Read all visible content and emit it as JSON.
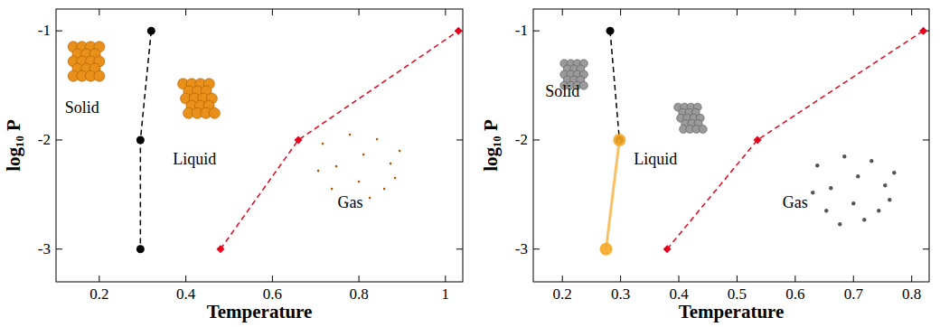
{
  "chart_data": [
    {
      "type": "line",
      "x_label": "Temperature",
      "y_label": "log₁₀ P",
      "xlim": [
        0.1,
        1.04
      ],
      "xticks": [
        {
          "value": 0.2,
          "label": "0.2"
        },
        {
          "value": 0.4,
          "label": "0.4"
        },
        {
          "value": 0.6,
          "label": "0.6"
        },
        {
          "value": 0.8,
          "label": "0.8"
        },
        1
      ],
      "ylim": [
        -3.3,
        -0.8
      ],
      "yticks": [
        -3,
        -2,
        -1
      ],
      "annotations": [
        "Solid",
        "Liquid",
        "Gas"
      ],
      "series": [
        {
          "color": "#000000",
          "line_style": "dashed",
          "marker": "circle",
          "x": [
            0.32,
            0.295,
            0.295
          ],
          "values": [
            -1,
            -2,
            -3
          ]
        },
        {
          "color": "#e8001c",
          "line_style": "dashed",
          "marker": "diamond",
          "x": [
            0.48,
            0.66,
            1.03
          ],
          "values": [
            -3,
            -2,
            -1
          ]
        }
      ]
    },
    {
      "type": "line",
      "x_label": "Temperature",
      "y_label": "log₁₀ P",
      "xlim": [
        0.15,
        0.83
      ],
      "xticks": [
        {
          "value": 0.2,
          "label": "0.2"
        },
        {
          "value": 0.3,
          "label": "0.3"
        },
        {
          "value": 0.4,
          "label": "0.4"
        },
        {
          "value": 0.5,
          "label": "0.5"
        },
        {
          "value": 0.6,
          "label": "0.6"
        },
        {
          "value": 0.7,
          "label": "0.7"
        },
        {
          "value": 0.8,
          "label": "0.8"
        }
      ],
      "ylim": [
        -3.3,
        -0.8
      ],
      "yticks": [
        -3,
        -2,
        -1
      ],
      "annotations": [
        "Solid",
        "Liquid",
        "Gas"
      ],
      "series": [
        {
          "color": "#000000",
          "line_style": "dashed",
          "marker": "circle",
          "x": [
            0.282,
            0.298
          ],
          "values": [
            -1,
            -2
          ]
        },
        {
          "color": "#f5a623",
          "line_style": "solid",
          "marker": "circle",
          "x": [
            0.298,
            0.275
          ],
          "values": [
            -2,
            -3
          ]
        },
        {
          "color": "#e8001c",
          "line_style": "dashed",
          "marker": "diamond",
          "x": [
            0.38,
            0.535,
            0.82
          ],
          "values": [
            -3,
            -2,
            -1
          ]
        }
      ]
    }
  ]
}
